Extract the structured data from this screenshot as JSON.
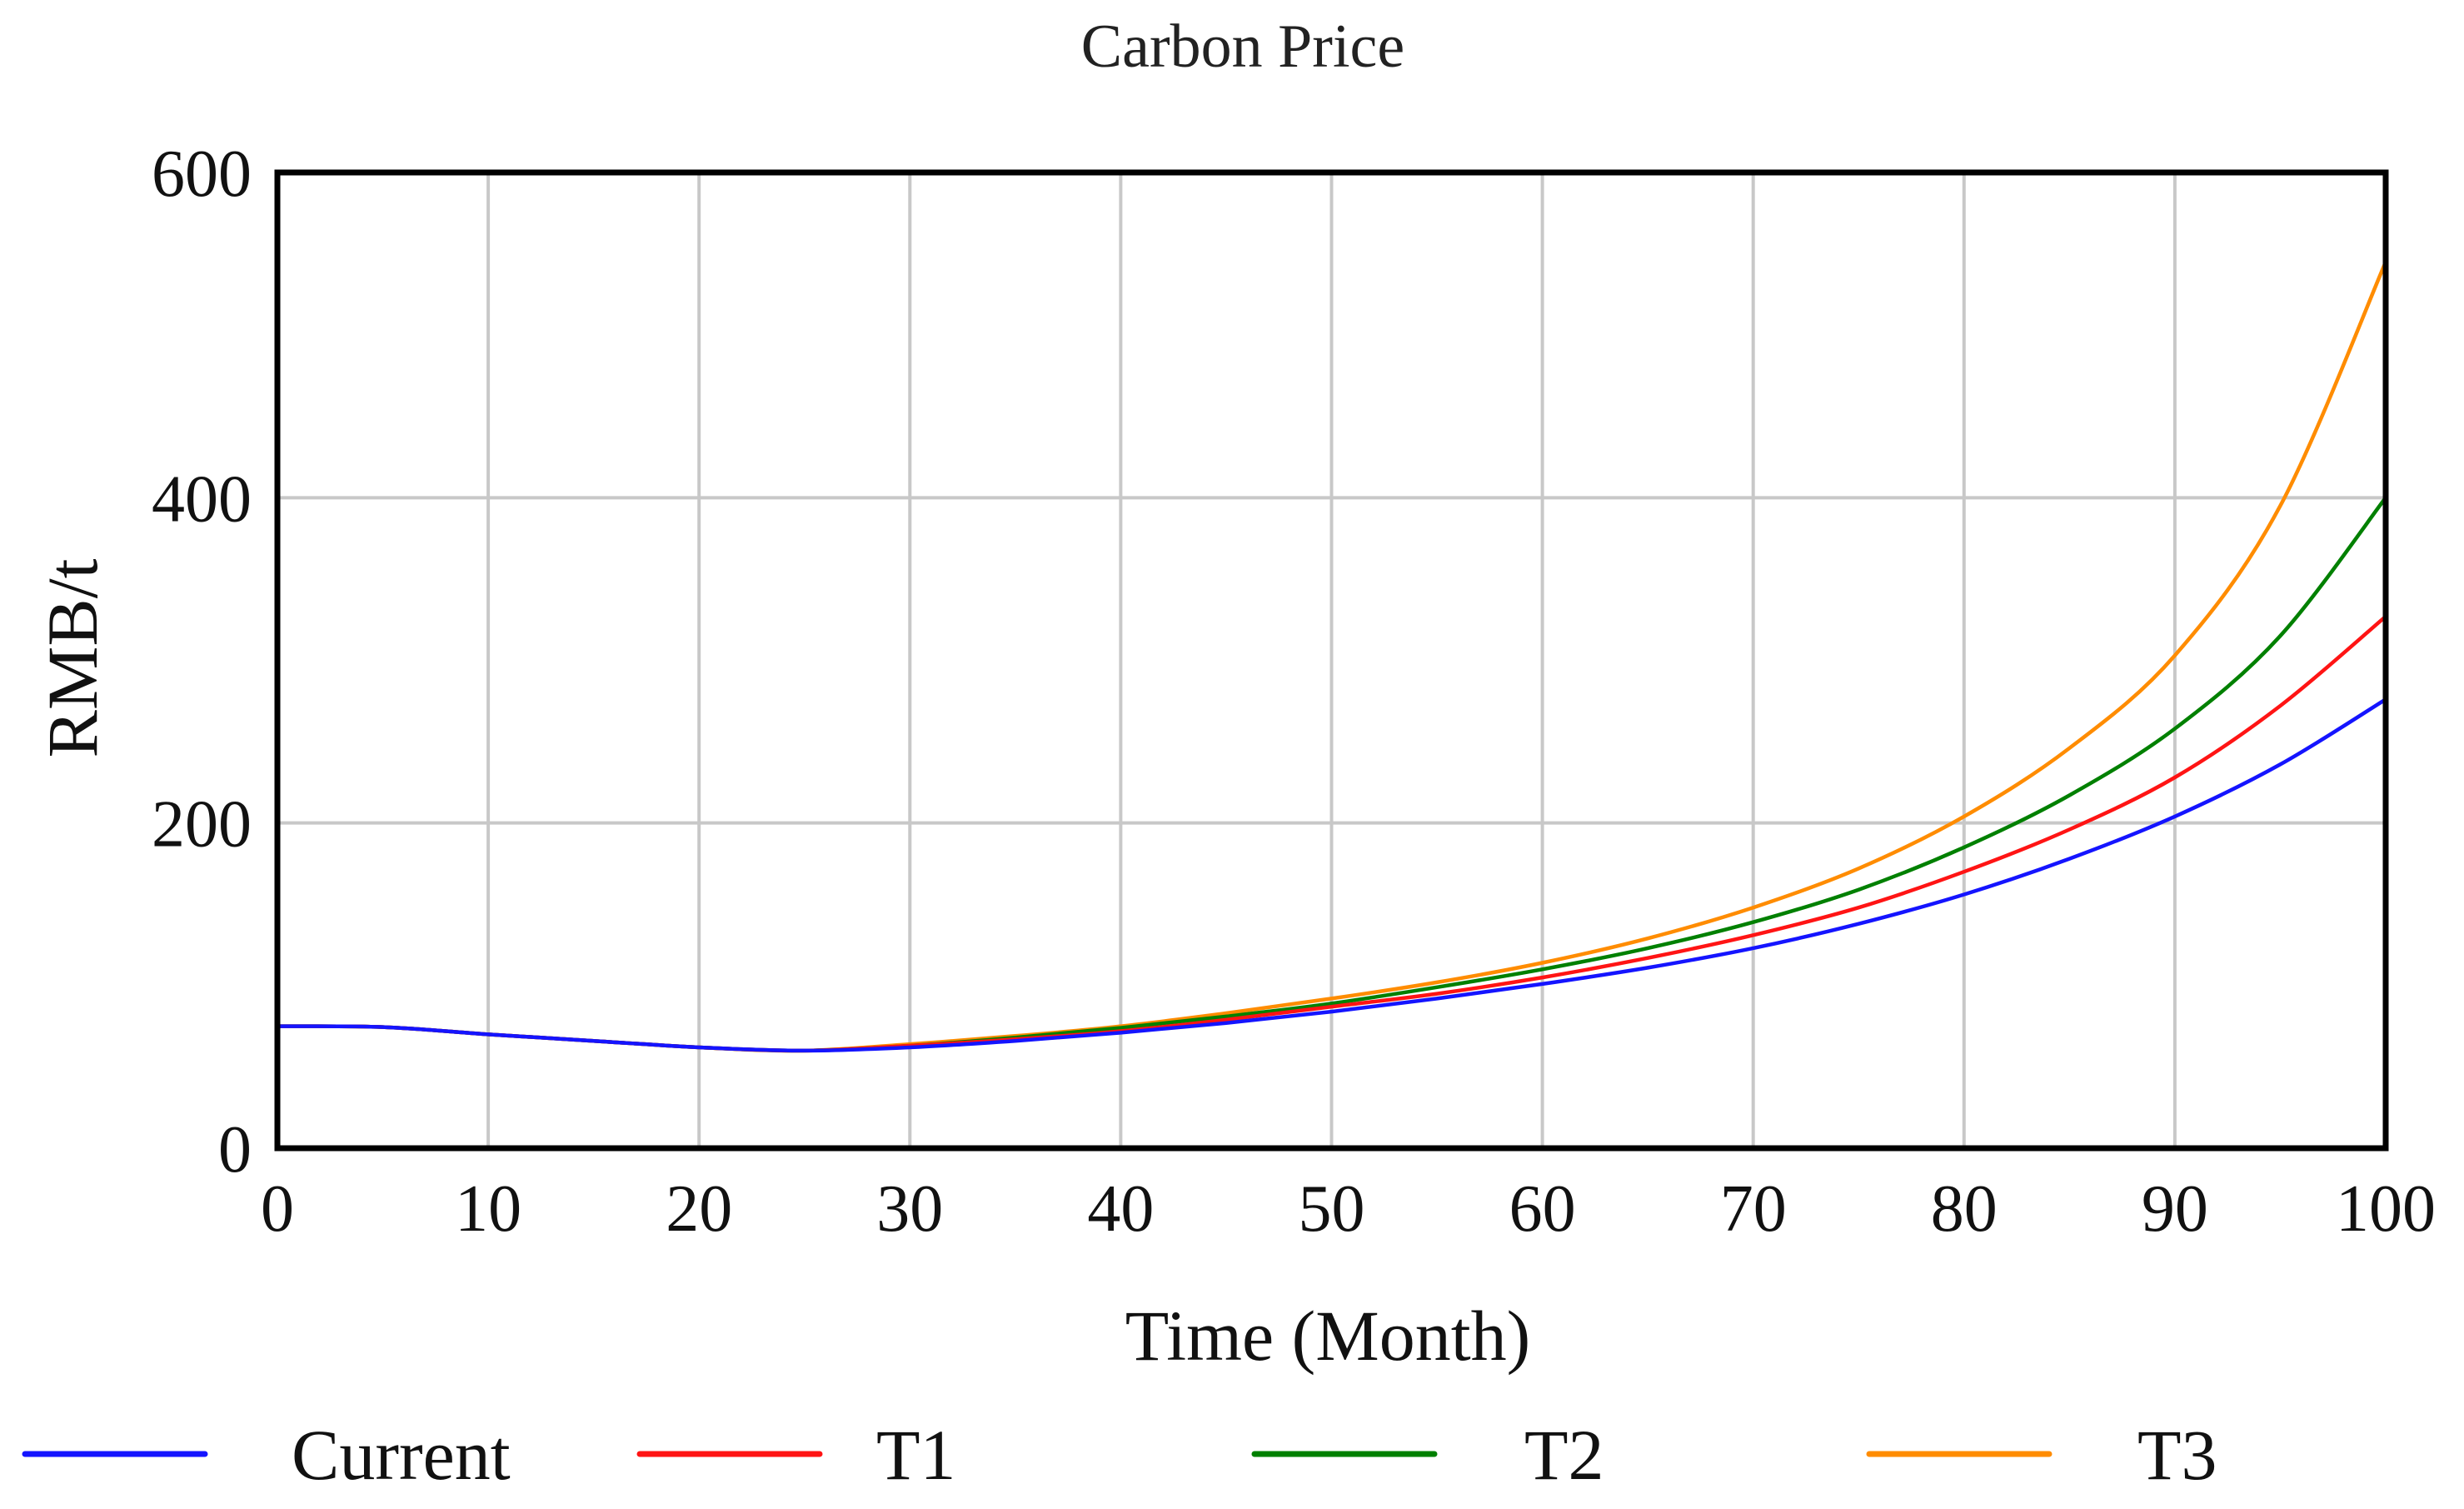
{
  "chart_data": {
    "type": "line",
    "title": "Carbon Price",
    "xlabel": "Time (Month)",
    "ylabel": "RMB/t",
    "xlim": [
      0,
      100
    ],
    "ylim": [
      0,
      600
    ],
    "xticks": [
      0,
      10,
      20,
      30,
      40,
      50,
      60,
      70,
      80,
      90,
      100
    ],
    "yticks": [
      0,
      200,
      400,
      600
    ],
    "grid": true,
    "legend_position": "bottom",
    "x": [
      0,
      5,
      10,
      15,
      20,
      25,
      30,
      35,
      40,
      45,
      50,
      55,
      60,
      65,
      70,
      75,
      80,
      85,
      90,
      95,
      100
    ],
    "series": [
      {
        "name": "Current",
        "color": "#1414ff",
        "values": [
          75,
          74.5,
          70,
          66,
          62,
          60,
          62,
          66,
          71,
          77,
          84,
          92,
          101,
          111,
          123,
          138,
          156,
          178,
          204,
          236,
          276
        ]
      },
      {
        "name": "T1",
        "color": "#ff1414",
        "values": [
          75,
          74.5,
          70,
          66,
          62,
          60,
          63,
          67,
          72,
          79,
          87,
          95,
          105,
          117,
          131,
          148,
          170,
          196,
          228,
          272,
          327
        ]
      },
      {
        "name": "T2",
        "color": "#008000",
        "values": [
          75,
          74.5,
          70,
          66,
          62,
          60,
          63,
          68,
          74,
          81,
          89,
          99,
          110,
          123,
          139,
          159,
          185,
          217,
          258,
          315,
          400
        ]
      },
      {
        "name": "T3",
        "color": "#ff8c00",
        "values": [
          75,
          74.5,
          70,
          66,
          62,
          60,
          64,
          69,
          75,
          83,
          92,
          102,
          114,
          129,
          148,
          172,
          204,
          246,
          303,
          395,
          545
        ]
      }
    ]
  }
}
